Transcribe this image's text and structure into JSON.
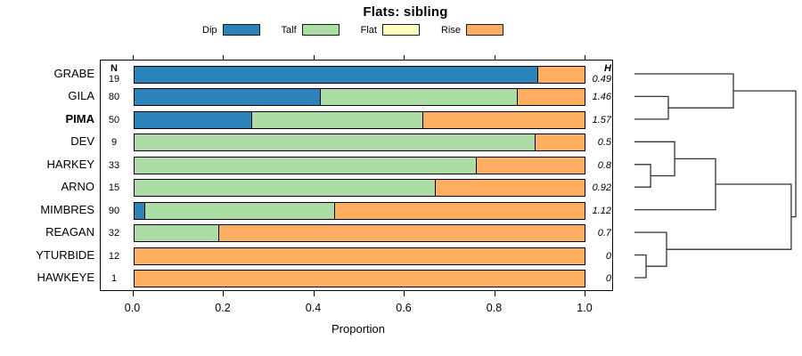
{
  "chart_data": {
    "type": "bar",
    "stacked": true,
    "orientation": "horizontal",
    "title": "Flats: sibling",
    "xlabel": "Proportion",
    "xlim": [
      0.0,
      1.0
    ],
    "xticks": [
      "0.0",
      "0.2",
      "0.4",
      "0.6",
      "0.8",
      "1.0"
    ],
    "grid": false,
    "legend_position": "top",
    "categories": [
      "GRABE",
      "GILA",
      "PIMA",
      "DEV",
      "HARKEY",
      "ARNO",
      "MIMBRES",
      "REAGAN",
      "YTURBIDE",
      "HAWKEYE"
    ],
    "bold_category": "PIMA",
    "n_column": {
      "header": "N",
      "values": [
        "19",
        "80",
        "50",
        "9",
        "33",
        "15",
        "90",
        "32",
        "12",
        "1"
      ]
    },
    "h_column": {
      "header": "H",
      "values": [
        "0.49",
        "1.46",
        "1.57",
        "0.5",
        "0.8",
        "0.92",
        "1.12",
        "0.7",
        "0",
        "0"
      ]
    },
    "series": [
      {
        "name": "Dip",
        "color": "#2b83ba",
        "values": [
          0.895,
          0.4125,
          0.26,
          0,
          0,
          0,
          0.022,
          0,
          0,
          0
        ]
      },
      {
        "name": "Talf",
        "color": "#abdda4",
        "values": [
          0,
          0.4375,
          0.38,
          0.889,
          0.758,
          0.667,
          0.422,
          0.1875,
          0,
          0
        ]
      },
      {
        "name": "Flat",
        "color": "#ffffbf",
        "values": [
          0,
          0,
          0,
          0,
          0,
          0,
          0,
          0,
          0,
          0
        ]
      },
      {
        "name": "Rise",
        "color": "#fdae61",
        "values": [
          0.105,
          0.15,
          0.36,
          0.111,
          0.242,
          0.333,
          0.556,
          0.8125,
          1.0,
          1.0
        ]
      }
    ],
    "dendrogram": {
      "side": "right",
      "leaves": [
        "GRABE",
        "GILA",
        "PIMA",
        "DEV",
        "HARKEY",
        "ARNO",
        "MIMBRES",
        "REAGAN",
        "YTURBIDE",
        "HAWKEYE"
      ],
      "merges": [
        {
          "id": "M1",
          "a": "L1",
          "b": "L2",
          "height": 0.21
        },
        {
          "id": "M2",
          "a": "L0",
          "b": "M1",
          "height": 0.613
        },
        {
          "id": "M3",
          "a": "L4",
          "b": "L5",
          "height": 0.1
        },
        {
          "id": "M4",
          "a": "L3",
          "b": "M3",
          "height": 0.249
        },
        {
          "id": "M5",
          "a": "M4",
          "b": "L6",
          "height": 0.503
        },
        {
          "id": "M6",
          "a": "L8",
          "b": "L9",
          "height": 0.072
        },
        {
          "id": "M7",
          "a": "L7",
          "b": "M6",
          "height": 0.199
        },
        {
          "id": "M8",
          "a": "M5",
          "b": "M7",
          "height": 0.972
        },
        {
          "id": "M9",
          "a": "M2",
          "b": "M8",
          "height": 1.0
        }
      ]
    }
  }
}
